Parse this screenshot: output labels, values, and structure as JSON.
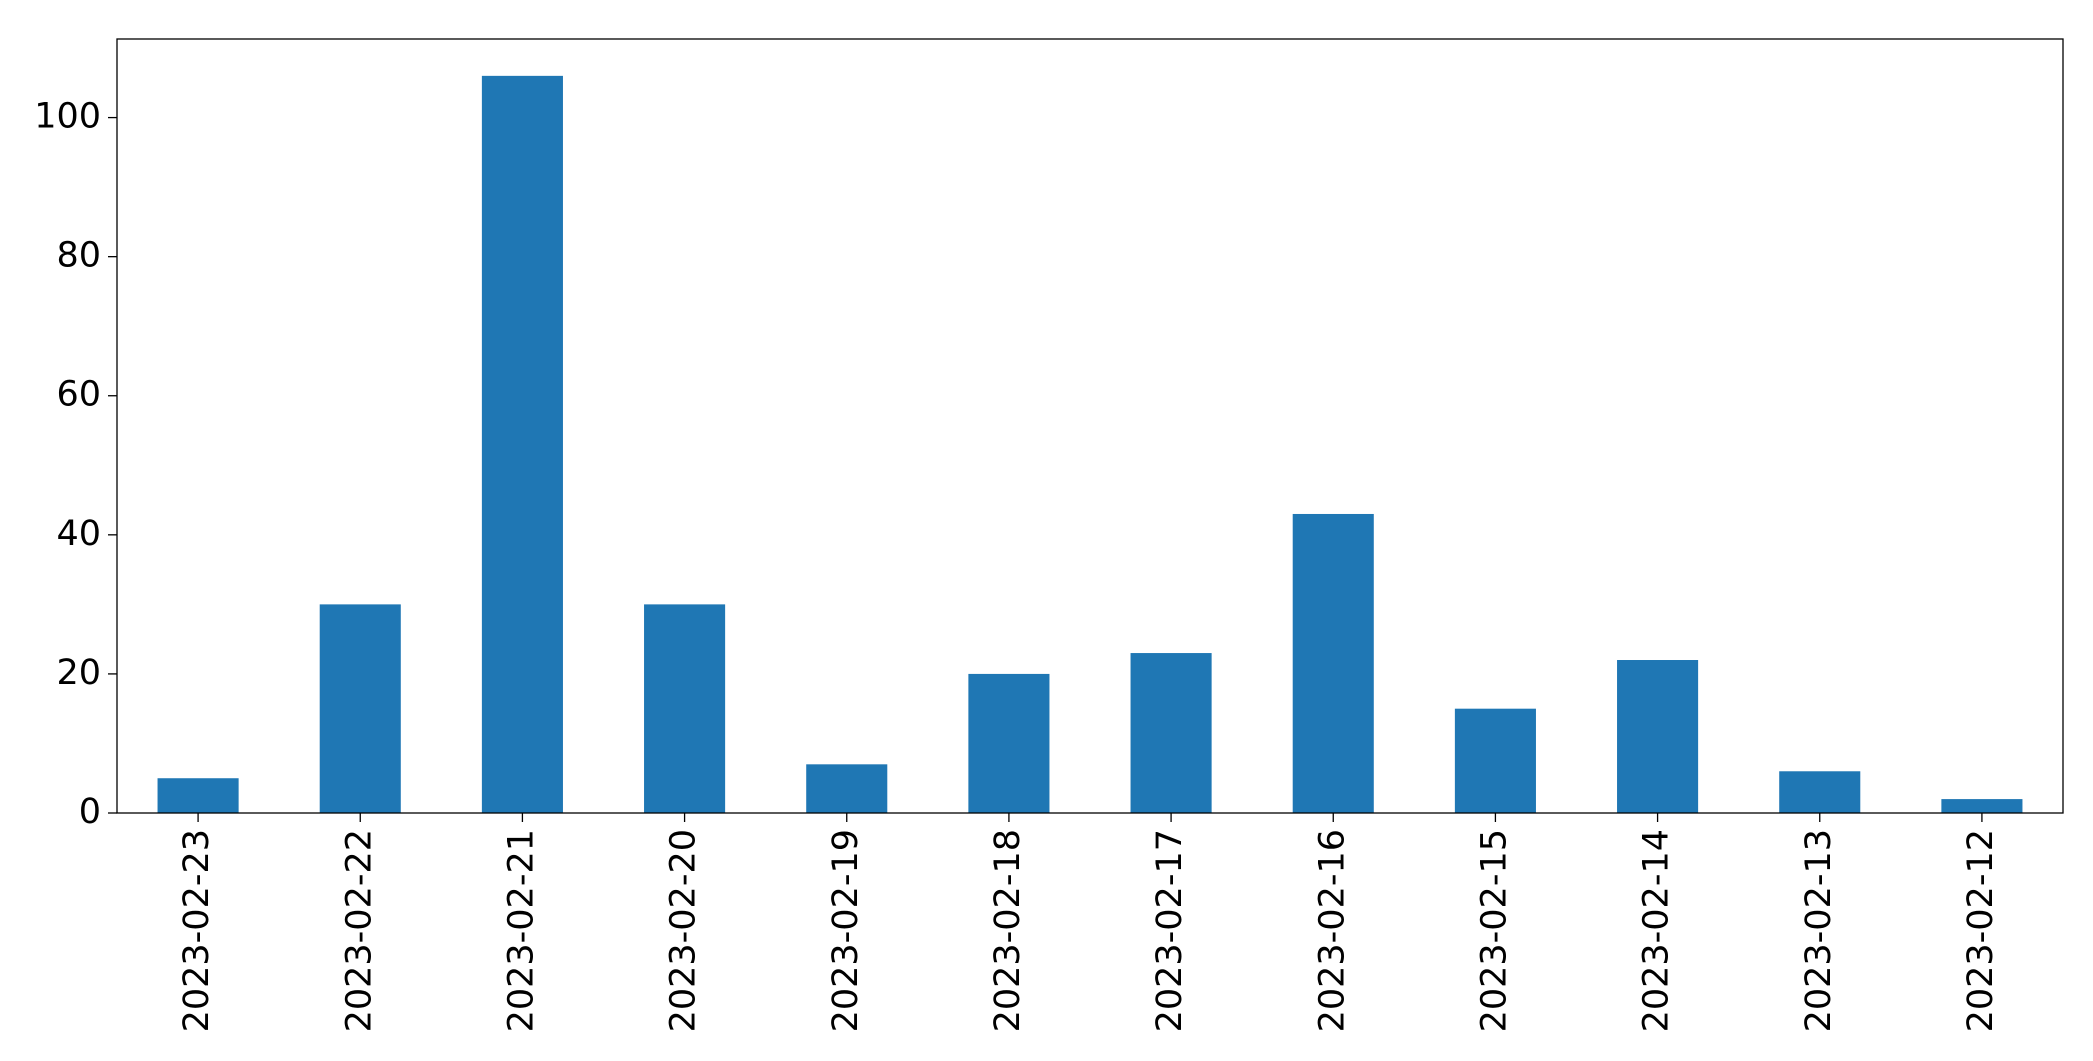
{
  "chart_data": {
    "type": "bar",
    "categories": [
      "2023-02-23",
      "2023-02-22",
      "2023-02-21",
      "2023-02-20",
      "2023-02-19",
      "2023-02-18",
      "2023-02-17",
      "2023-02-16",
      "2023-02-15",
      "2023-02-14",
      "2023-02-13",
      "2023-02-12"
    ],
    "values": [
      5,
      30,
      106,
      30,
      7,
      20,
      23,
      43,
      15,
      22,
      6,
      2
    ],
    "color": "#1f77b4",
    "ylim": [
      0,
      111.3
    ],
    "yticks": [
      0,
      20,
      40,
      60,
      80,
      100
    ],
    "grid": false
  }
}
